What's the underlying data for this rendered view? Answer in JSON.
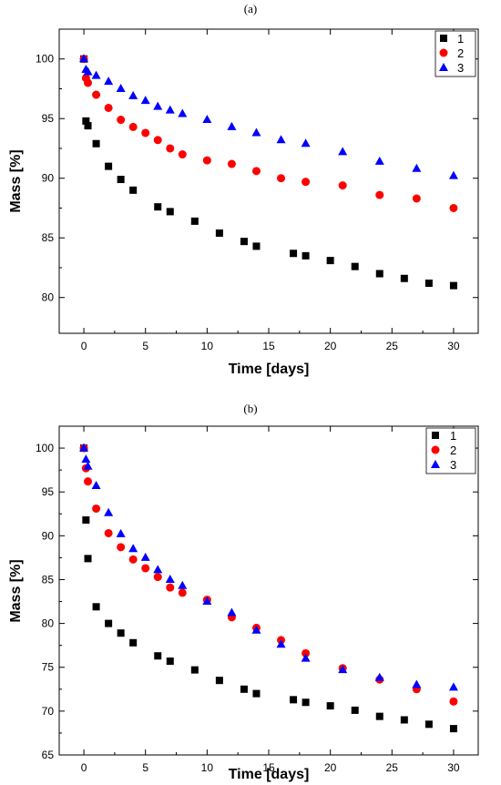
{
  "colors": {
    "series1": "#000000",
    "series2": "#ff0000",
    "series3": "#0000ff"
  },
  "chart_data": [
    {
      "type": "scatter",
      "panel_label": "(a)",
      "xlabel": "Time [days]",
      "ylabel": "Mass [%]",
      "xlim": [
        -2,
        32
      ],
      "ylim": [
        77,
        102.5
      ],
      "xticks": [
        0,
        5,
        10,
        15,
        20,
        25,
        30
      ],
      "yticks": [
        80,
        85,
        90,
        95,
        100
      ],
      "grid": false,
      "legend": "top-right",
      "series": [
        {
          "name": "1",
          "marker": "square",
          "color": "#000000",
          "x": [
            0,
            0.17,
            0.33,
            1,
            2,
            3,
            4,
            6,
            7,
            9,
            11,
            13,
            14,
            17,
            18,
            20,
            22,
            24,
            26,
            28,
            30
          ],
          "y": [
            100,
            94.8,
            94.4,
            92.9,
            91.0,
            89.9,
            89.0,
            87.6,
            87.2,
            86.4,
            85.4,
            84.7,
            84.3,
            83.7,
            83.5,
            83.1,
            82.6,
            82.0,
            81.6,
            81.2,
            81.0
          ]
        },
        {
          "name": "2",
          "marker": "circle",
          "color": "#ff0000",
          "x": [
            0,
            0.17,
            0.33,
            1,
            2,
            3,
            4,
            5,
            6,
            7,
            8,
            10,
            12,
            14,
            16,
            18,
            21,
            24,
            27,
            30
          ],
          "y": [
            100,
            98.4,
            98.0,
            97.0,
            95.9,
            94.9,
            94.3,
            93.8,
            93.2,
            92.5,
            92.0,
            91.5,
            91.2,
            90.6,
            90.0,
            89.7,
            89.4,
            88.6,
            88.3,
            87.5
          ]
        },
        {
          "name": "3",
          "marker": "triangle",
          "color": "#0000ff",
          "x": [
            0,
            0.17,
            0.33,
            1,
            2,
            3,
            4,
            5,
            6,
            7,
            8,
            10,
            12,
            14,
            16,
            18,
            21,
            24,
            27,
            30
          ],
          "y": [
            100,
            99.1,
            98.9,
            98.6,
            98.1,
            97.5,
            96.9,
            96.5,
            96.0,
            95.7,
            95.4,
            94.9,
            94.3,
            93.8,
            93.2,
            92.9,
            92.2,
            91.4,
            90.8,
            90.2
          ]
        }
      ]
    },
    {
      "type": "scatter",
      "panel_label": "(b)",
      "xlabel": "Time [days]",
      "ylabel": "Mass [%]",
      "xlim": [
        -2,
        32
      ],
      "ylim": [
        65,
        102.5
      ],
      "xticks": [
        0,
        5,
        10,
        15,
        20,
        25,
        30
      ],
      "yticks": [
        65,
        70,
        75,
        80,
        85,
        90,
        95,
        100
      ],
      "grid": false,
      "legend": "top-right",
      "series": [
        {
          "name": "1",
          "marker": "square",
          "color": "#000000",
          "x": [
            0,
            0.17,
            0.33,
            1,
            2,
            3,
            4,
            6,
            7,
            9,
            11,
            13,
            14,
            17,
            18,
            20,
            22,
            24,
            26,
            28,
            30
          ],
          "y": [
            100,
            91.8,
            87.4,
            81.9,
            80.0,
            78.9,
            77.8,
            76.3,
            75.7,
            74.7,
            73.5,
            72.5,
            72.0,
            71.3,
            71.0,
            70.6,
            70.1,
            69.4,
            69.0,
            68.5,
            68.0
          ]
        },
        {
          "name": "2",
          "marker": "circle",
          "color": "#ff0000",
          "x": [
            0,
            0.17,
            0.33,
            1,
            2,
            3,
            4,
            5,
            6,
            7,
            8,
            10,
            12,
            14,
            16,
            18,
            21,
            24,
            27,
            30
          ],
          "y": [
            100,
            97.7,
            96.2,
            93.1,
            90.3,
            88.7,
            87.3,
            86.3,
            85.3,
            84.1,
            83.5,
            82.7,
            80.7,
            79.5,
            78.1,
            76.6,
            74.9,
            73.6,
            72.5,
            71.1
          ]
        },
        {
          "name": "3",
          "marker": "triangle",
          "color": "#0000ff",
          "x": [
            0,
            0.17,
            0.33,
            1,
            2,
            3,
            4,
            5,
            6,
            7,
            8,
            10,
            12,
            14,
            16,
            18,
            21,
            24,
            27,
            30
          ],
          "y": [
            100,
            98.7,
            97.9,
            95.7,
            92.6,
            90.2,
            88.5,
            87.5,
            86.1,
            85.0,
            84.3,
            82.5,
            81.2,
            79.2,
            77.6,
            76.0,
            74.7,
            73.8,
            73.0,
            72.7
          ]
        }
      ]
    }
  ]
}
